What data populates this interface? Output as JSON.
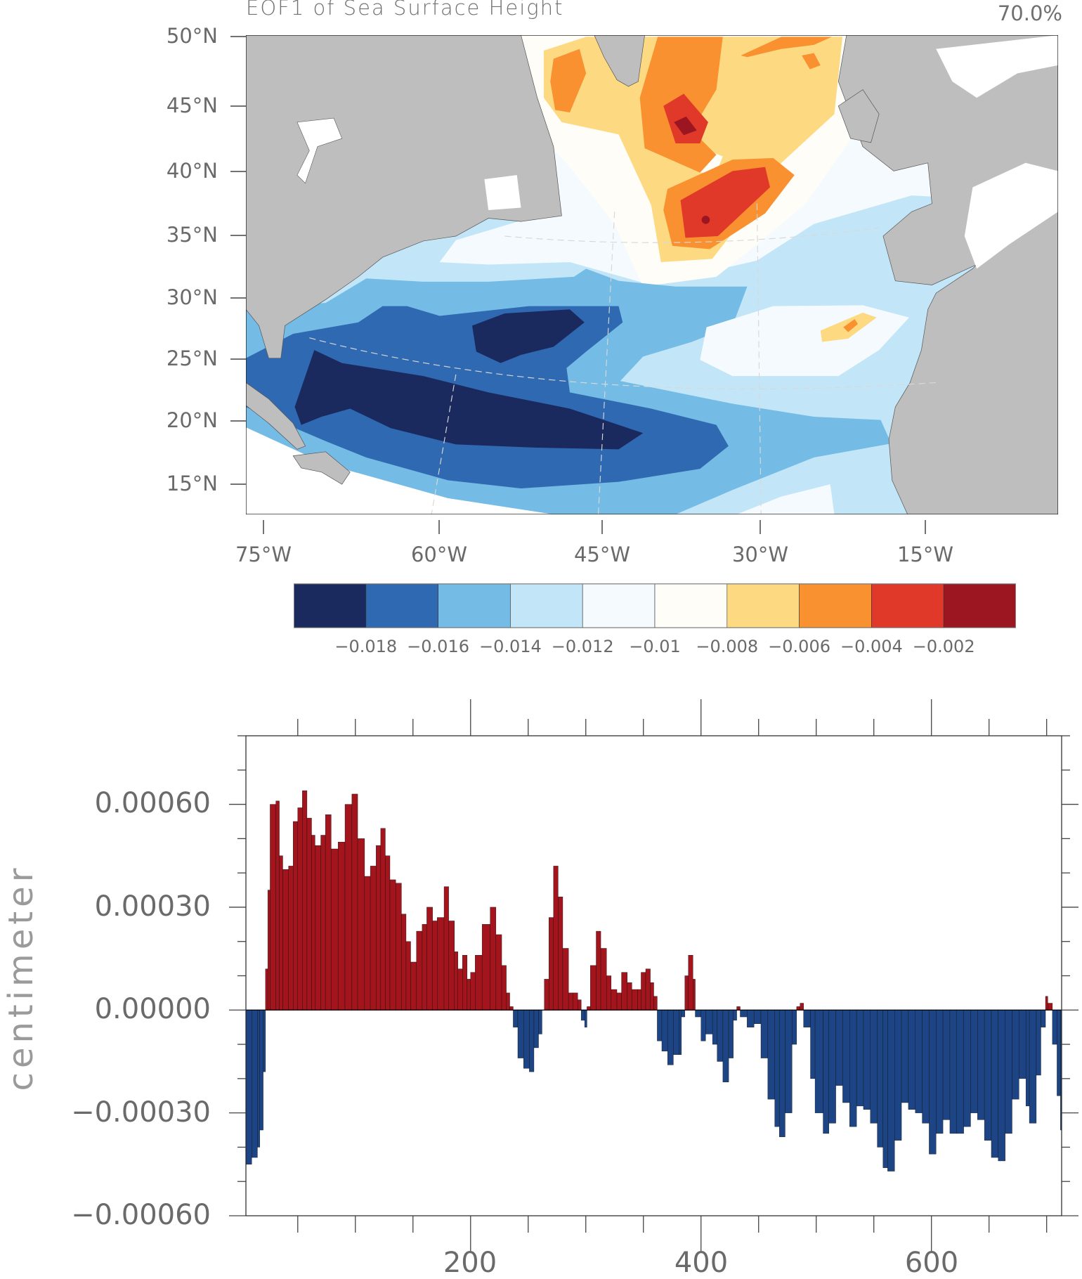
{
  "map": {
    "title": "EOF1 of Sea Surface Height",
    "variance_explained": "70.0%",
    "lat_labels": [
      "50°N",
      "45°N",
      "40°N",
      "35°N",
      "30°N",
      "25°N",
      "20°N",
      "15°N"
    ],
    "lon_labels": [
      "75°W",
      "60°W",
      "45°W",
      "30°W",
      "15°W"
    ],
    "colors": {
      "land": "#bebebe",
      "ocean_base": "#c2e6f7"
    },
    "colorbar": {
      "colors": [
        "#1b2a5e",
        "#2f69b1",
        "#74bbe5",
        "#c2e6f7",
        "#f5fafe",
        "#fffdf7",
        "#fdda82",
        "#f99130",
        "#e0392a",
        "#9b1620"
      ],
      "labels": [
        "−0.018",
        "−0.016",
        "−0.014",
        "−0.012",
        "−0.01",
        "−0.008",
        "−0.006",
        "−0.004",
        "−0.002"
      ]
    }
  },
  "chart_data": {
    "type": "bar",
    "title": "",
    "xlabel": "",
    "ylabel": "centimeter",
    "xlim": [
      5,
      713
    ],
    "ylim": [
      -0.0006,
      0.0008
    ],
    "x_ticks": [
      "200",
      "400",
      "600"
    ],
    "y_ticks": [
      "0.00060",
      "0.00030",
      "0.00000",
      "−0.00030",
      "−0.00060"
    ],
    "positive_color": "#a3141c",
    "negative_color": "#1d4585",
    "x": [
      5,
      10,
      15,
      17,
      20,
      22,
      24,
      26,
      31,
      34,
      37,
      42,
      46,
      50,
      54,
      58,
      62,
      65,
      70,
      74,
      79,
      85,
      91,
      97,
      102,
      108,
      113,
      118,
      122,
      126,
      130,
      135,
      140,
      144,
      148,
      153,
      158,
      162,
      167,
      171,
      177,
      181,
      186,
      189,
      193,
      197,
      200,
      204,
      210,
      217,
      222,
      227,
      231,
      234,
      237,
      241,
      246,
      251,
      255,
      259,
      262,
      264,
      268,
      272,
      276,
      280,
      285,
      289,
      293,
      296,
      299,
      301,
      304,
      309,
      313,
      318,
      322,
      327,
      331,
      336,
      340,
      345,
      348,
      352,
      356,
      359,
      362,
      366,
      371,
      376,
      381,
      383,
      386,
      389,
      393,
      395,
      400,
      404,
      410,
      414,
      419,
      424,
      428,
      431,
      434,
      440,
      446,
      452,
      458,
      464,
      468,
      473,
      479,
      483,
      486,
      489,
      495,
      499,
      506,
      511,
      517,
      523,
      529,
      535,
      541,
      547,
      553,
      558,
      562,
      568,
      574,
      580,
      586,
      592,
      598,
      604,
      610,
      616,
      622,
      628,
      634,
      640,
      646,
      652,
      658,
      664,
      670,
      676,
      682,
      685,
      691,
      695,
      699,
      701,
      705,
      709,
      712
    ],
    "values": [
      -0.00045,
      -0.00043,
      -0.0004,
      -0.00035,
      -0.00018,
      0.00012,
      0.00035,
      0.0006,
      0.00061,
      0.00045,
      0.00041,
      0.00042,
      0.00055,
      0.00059,
      0.00064,
      0.00056,
      0.00051,
      0.00048,
      0.00051,
      0.00057,
      0.00047,
      0.00049,
      0.0006,
      0.00063,
      0.0005,
      0.00039,
      0.00042,
      0.00048,
      0.00053,
      0.00045,
      0.00038,
      0.00037,
      0.00028,
      0.0002,
      0.00014,
      0.00023,
      0.00025,
      0.0003,
      0.00026,
      0.00027,
      0.00036,
      0.00026,
      0.00017,
      0.00012,
      0.00016,
      9e-05,
      0.00011,
      0.00016,
      0.00025,
      0.0003,
      0.00022,
      0.00013,
      5e-05,
      1e-05,
      -5e-05,
      -0.00014,
      -0.00017,
      -0.00018,
      -0.00011,
      -7e-05,
      0.0,
      9e-05,
      0.00027,
      0.00042,
      0.00033,
      0.00018,
      5e-05,
      5e-05,
      3e-05,
      -3e-05,
      -5e-05,
      1e-05,
      0.00013,
      0.00023,
      0.00018,
      0.0001,
      6e-05,
      5e-05,
      0.00011,
      8e-05,
      6e-05,
      6e-05,
      0.00011,
      0.00012,
      8e-05,
      4e-05,
      -9e-05,
      -0.00012,
      -0.00016,
      -0.00013,
      -0.00013,
      -2e-05,
      0.0001,
      0.00016,
      9e-05,
      -2e-05,
      -9e-05,
      -7e-05,
      -0.0001,
      -0.00015,
      -0.00021,
      -0.00014,
      -3e-05,
      1e-05,
      -2e-05,
      -5e-05,
      -4e-05,
      -0.00014,
      -0.00026,
      -0.00034,
      -0.00037,
      -0.0003,
      -0.0001,
      1e-05,
      2e-05,
      -5e-05,
      -0.0002,
      -0.0003,
      -0.00036,
      -0.00033,
      -0.00022,
      -0.00027,
      -0.00034,
      -0.00028,
      -0.00029,
      -0.00033,
      -0.0004,
      -0.00046,
      -0.00047,
      -0.00038,
      -0.00027,
      -0.00029,
      -0.0003,
      -0.00033,
      -0.00042,
      -0.00036,
      -0.00032,
      -0.00036,
      -0.00036,
      -0.00034,
      -0.0003,
      -0.00032,
      -0.00038,
      -0.00043,
      -0.00044,
      -0.00036,
      -0.00026,
      -0.0002,
      -0.00028,
      -0.00033,
      -0.00019,
      -5e-05,
      4e-05,
      2e-05,
      -0.0001,
      -0.00025,
      -0.00035
    ]
  }
}
